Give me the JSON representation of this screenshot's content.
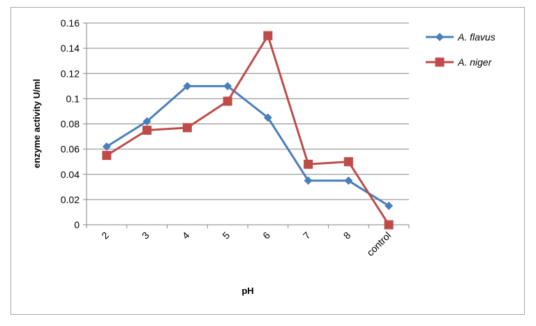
{
  "chart_data": {
    "type": "line",
    "title": "",
    "xlabel": "pH",
    "ylabel": "enzyme activity  U/ml",
    "categories": [
      "2",
      "3",
      "4",
      "5",
      "6",
      "7",
      "8",
      "control"
    ],
    "ylim": [
      0,
      0.16
    ],
    "yticks": [
      "0",
      "0.02",
      "0.04",
      "0.06",
      "0.08",
      "0.1",
      "0.12",
      "0.14",
      "0.16"
    ],
    "grid": true,
    "legend_position": "right",
    "series": [
      {
        "name": "A. flavus",
        "color": "#4a7ebb",
        "marker": "diamond",
        "values": [
          0.062,
          0.082,
          0.11,
          0.11,
          0.085,
          0.035,
          0.035,
          0.015
        ]
      },
      {
        "name": "A. niger",
        "color": "#be4b48",
        "marker": "square",
        "values": [
          0.055,
          0.075,
          0.077,
          0.098,
          0.15,
          0.048,
          0.05,
          0.0
        ]
      }
    ]
  }
}
